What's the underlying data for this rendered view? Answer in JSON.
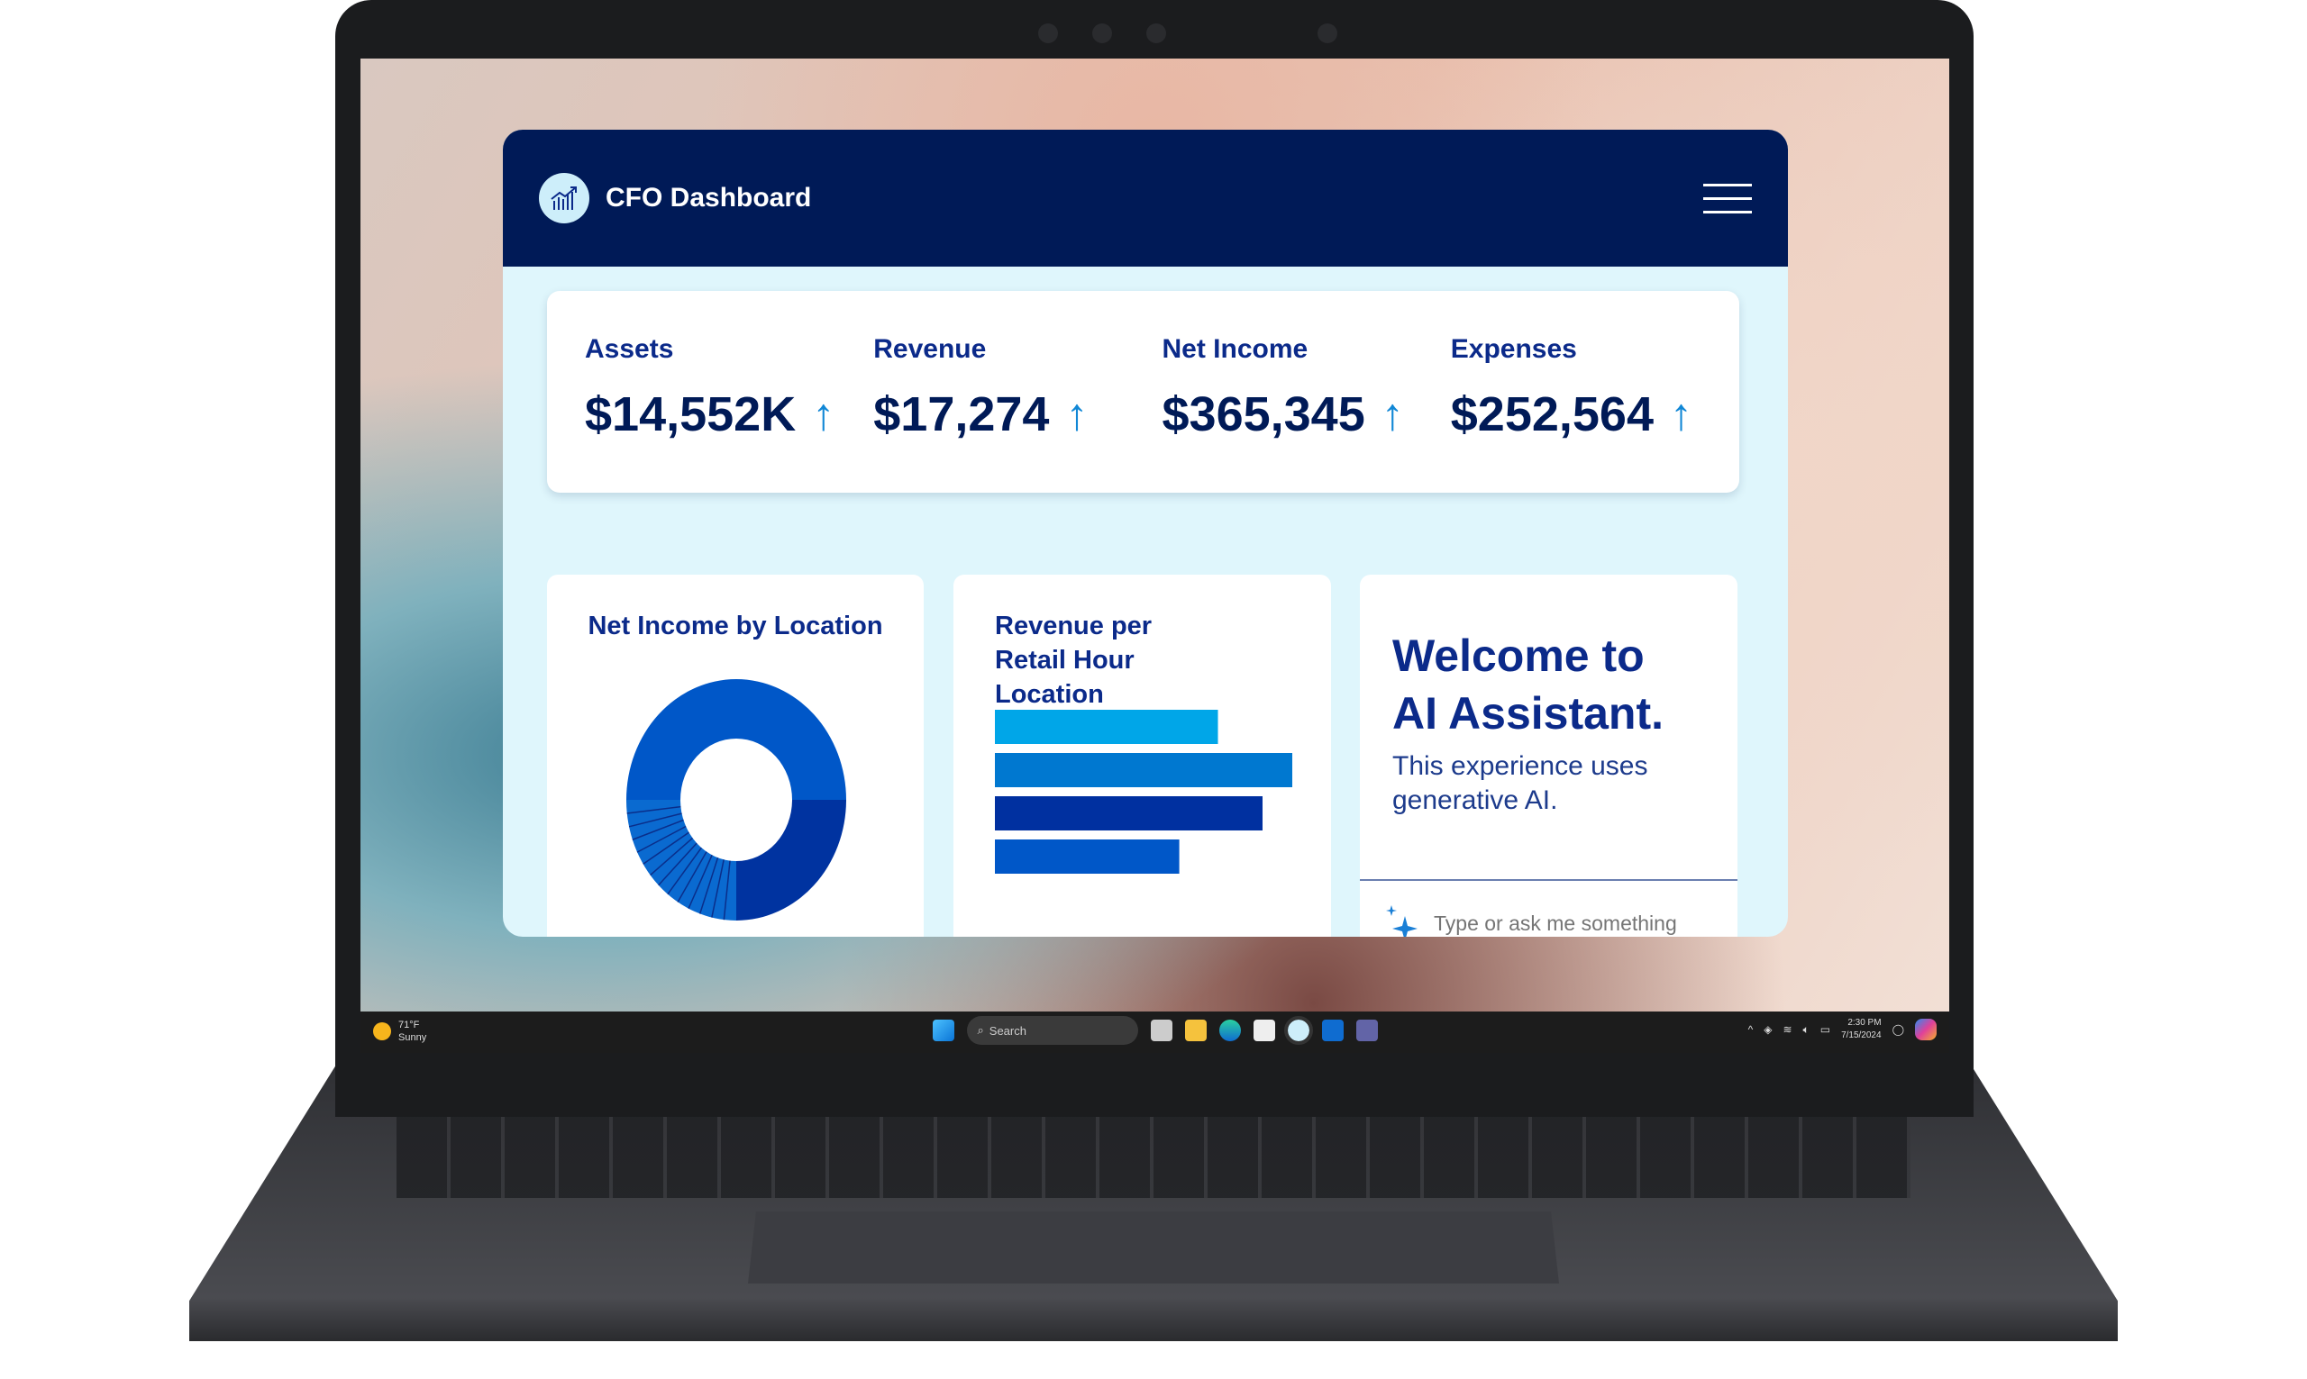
{
  "app": {
    "title": "CFO Dashboard",
    "logo_icon": "chart-growth-icon",
    "menu_icon": "hamburger-menu-icon"
  },
  "kpis": [
    {
      "label": "Assets",
      "value": "$14,552K",
      "trend": "up"
    },
    {
      "label": "Revenue",
      "value": "$17,274",
      "trend": "up"
    },
    {
      "label": "Net Income",
      "value": "$365,345",
      "trend": "up"
    },
    {
      "label": "Expenses",
      "value": "$252,564",
      "trend": "up"
    }
  ],
  "arrow_glyph": "↑",
  "chart_data": [
    {
      "type": "pie",
      "title": "Net Income by Location",
      "donut": true,
      "values": [
        50,
        25,
        25
      ],
      "colors": [
        "#0057c8",
        "#0033a0",
        "#0a6ad0"
      ]
    },
    {
      "type": "bar",
      "orientation": "horizontal",
      "title": "Revenue per Retail Hour Location",
      "values": [
        75,
        100,
        90,
        62
      ],
      "colors": [
        "#00a6e8",
        "#0078d0",
        "#0030a0",
        "#0057c8"
      ]
    }
  ],
  "assistant": {
    "heading": "Welcome to AI Assistant.",
    "subtitle": "This experience uses generative AI.",
    "placeholder": "Type or ask me something",
    "icon": "sparkle-icon"
  },
  "taskbar": {
    "weather_temp": "71°F",
    "weather_desc": "Sunny",
    "search_label": "Search",
    "time": "2:30 PM",
    "date": "7/15/2024"
  },
  "colors": {
    "header": "#001a57",
    "accent": "#1187d6",
    "panel": "#dff6fc"
  }
}
